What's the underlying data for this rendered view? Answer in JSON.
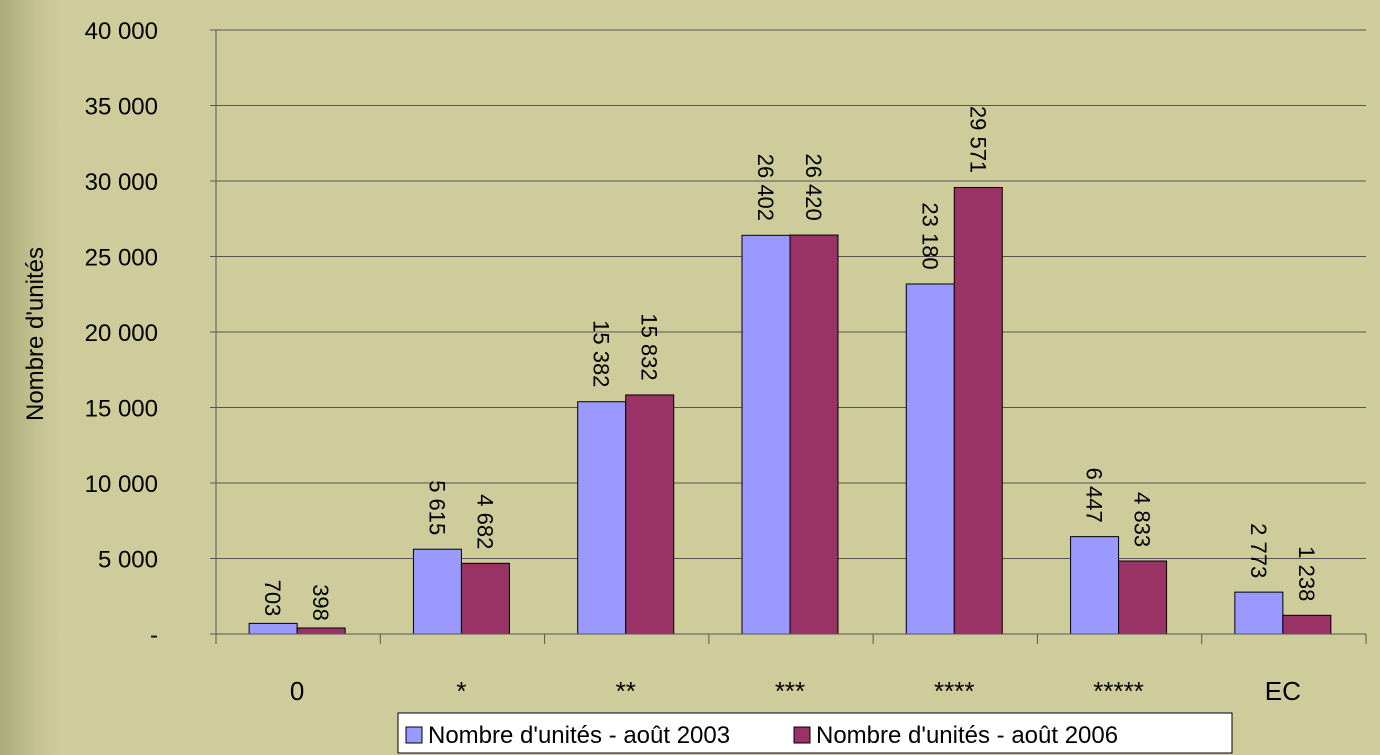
{
  "chart_data": {
    "type": "bar",
    "title": "",
    "xlabel": "",
    "ylabel": "Nombre d'unités",
    "ylim": [
      0,
      40000
    ],
    "yticks": [
      {
        "value": 0,
        "label": "-"
      },
      {
        "value": 5000,
        "label": "5 000"
      },
      {
        "value": 10000,
        "label": "10 000"
      },
      {
        "value": 15000,
        "label": "15 000"
      },
      {
        "value": 20000,
        "label": "20 000"
      },
      {
        "value": 25000,
        "label": "25 000"
      },
      {
        "value": 30000,
        "label": "30 000"
      },
      {
        "value": 35000,
        "label": "35 000"
      },
      {
        "value": 40000,
        "label": "40 000"
      }
    ],
    "categories": [
      "0",
      "*",
      "**",
      "***",
      "****",
      "*****",
      "EC"
    ],
    "series": [
      {
        "name": "Nombre d'unités - août 2003",
        "color": "#9999ff",
        "values": [
          703,
          5615,
          15382,
          26402,
          23180,
          6447,
          2773
        ],
        "labels": [
          "703",
          "5 615",
          "15 382",
          "26 402",
          "23 180",
          "6 447",
          "2 773"
        ]
      },
      {
        "name": "Nombre d'unités - août 2006",
        "color": "#993366",
        "values": [
          398,
          4682,
          15832,
          26420,
          29571,
          4833,
          1238
        ],
        "labels": [
          "398",
          "4 682",
          "15 832",
          "26 420",
          "29 571",
          "4 833",
          "1 238"
        ]
      }
    ],
    "grid": true,
    "legend": "bottom"
  }
}
